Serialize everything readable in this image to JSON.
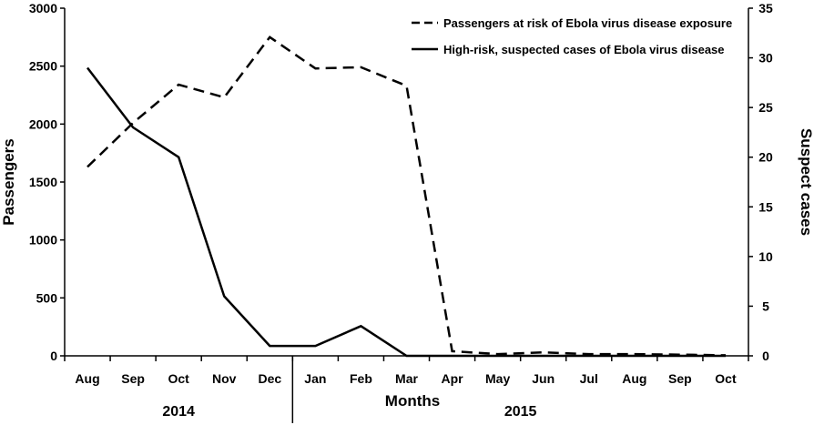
{
  "chart_data": {
    "type": "line",
    "categories": [
      "Aug",
      "Sep",
      "Oct",
      "Nov",
      "Dec",
      "Jan",
      "Feb",
      "Mar",
      "Apr",
      "May",
      "Jun",
      "Jul",
      "Aug",
      "Sep",
      "Oct"
    ],
    "years": [
      {
        "label": "2014",
        "first": 0,
        "last": 4
      },
      {
        "label": "2015",
        "first": 5,
        "last": 14
      }
    ],
    "xlabel": "Months",
    "ylabel": "Passengers",
    "y2label": "Suspect cases",
    "ylim": [
      0,
      3000
    ],
    "y2lim": [
      0,
      35
    ],
    "yticks": [
      0,
      500,
      1000,
      1500,
      2000,
      2500,
      3000
    ],
    "y2ticks": [
      0,
      5,
      10,
      15,
      20,
      25,
      30,
      35
    ],
    "legend_position": "top-right",
    "grid": false,
    "series": [
      {
        "name": "Passengers at risk of Ebola virus disease exposure",
        "axis": "left",
        "style": "dashed",
        "color": "#000000",
        "values": [
          1630,
          2010,
          2340,
          2230,
          2750,
          2480,
          2490,
          2330,
          40,
          15,
          30,
          15,
          15,
          10,
          5
        ]
      },
      {
        "name": "High-risk, suspected cases of Ebola virus disease",
        "axis": "right",
        "style": "solid",
        "color": "#000000",
        "values": [
          29,
          23,
          20,
          6,
          1,
          1,
          3,
          0,
          0,
          0,
          0,
          0,
          0,
          0,
          0
        ]
      }
    ]
  }
}
